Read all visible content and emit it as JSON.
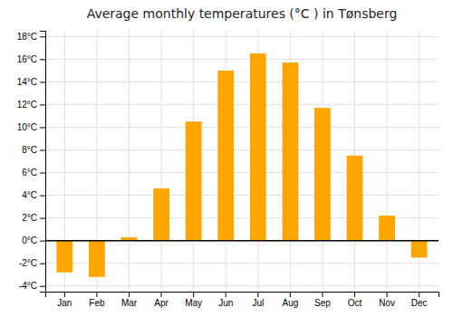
{
  "chart_data": {
    "type": "bar",
    "title": "Average monthly temperatures (°C ) in Tønsberg",
    "categories": [
      "Jan",
      "Feb",
      "Mar",
      "Apr",
      "May",
      "Jun",
      "Jul",
      "Aug",
      "Sep",
      "Oct",
      "Nov",
      "Dec"
    ],
    "values": [
      -2.8,
      -3.2,
      0.3,
      4.6,
      10.5,
      15.0,
      16.5,
      15.7,
      11.7,
      7.5,
      2.2,
      -1.5
    ],
    "color": "#FFA500",
    "ylim": [
      -4.5,
      18.5
    ],
    "yticks": [
      {
        "value": -4,
        "label": "-4°C"
      },
      {
        "value": -2,
        "label": "-2°C"
      },
      {
        "value": 0,
        "label": "0°C"
      },
      {
        "value": 2,
        "label": "2°C"
      },
      {
        "value": 4,
        "label": "4°C"
      },
      {
        "value": 6,
        "label": "6°C"
      },
      {
        "value": 8,
        "label": "8°C"
      },
      {
        "value": 10,
        "label": "10°C"
      },
      {
        "value": 12,
        "label": "12°C"
      },
      {
        "value": 14,
        "label": "14°C"
      },
      {
        "value": 16,
        "label": "16°C"
      },
      {
        "value": 18,
        "label": "18°C"
      }
    ],
    "grid": true
  }
}
